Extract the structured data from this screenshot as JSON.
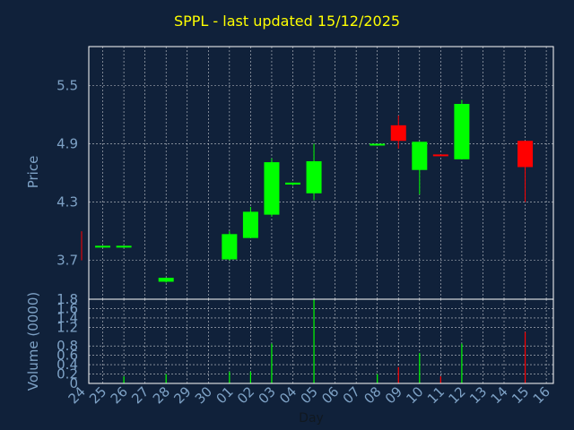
{
  "chart_data": {
    "type": "candlestick",
    "title": "SPPL - last updated 15/12/2025",
    "x_label": "Day",
    "x_ticks": [
      "24",
      "25",
      "26",
      "27",
      "28",
      "29",
      "30",
      "01",
      "02",
      "03",
      "04",
      "05",
      "06",
      "07",
      "08",
      "09",
      "10",
      "11",
      "12",
      "13",
      "14",
      "15",
      "16"
    ],
    "price_panel": {
      "ylabel": "Price",
      "ylim": [
        3.3,
        5.9
      ],
      "y_ticks": [
        "3.7",
        "4.3",
        "4.9",
        "5.5"
      ]
    },
    "volume_panel": {
      "ylabel": "Volume (0000)",
      "ylim": [
        0,
        1.8
      ],
      "y_ticks": [
        "0",
        "0.2",
        "0.4",
        "0.6",
        "0.8",
        "1.2",
        "1.4",
        "1.6",
        "1.8"
      ]
    },
    "candles": [
      {
        "day": "24",
        "open": 4.0,
        "high": 4.0,
        "low": 3.7,
        "close": 3.7,
        "volume": 0
      },
      {
        "day": "25",
        "open": 3.85,
        "high": 3.85,
        "low": 3.84,
        "close": 3.85,
        "volume": 0
      },
      {
        "day": "26",
        "open": 3.84,
        "high": 3.85,
        "low": 3.83,
        "close": 3.85,
        "volume": 0.15
      },
      {
        "day": "28",
        "open": 3.48,
        "high": 3.52,
        "low": 3.47,
        "close": 3.52,
        "volume": 0.2
      },
      {
        "day": "01",
        "open": 3.71,
        "high": 4.0,
        "low": 3.7,
        "close": 3.97,
        "volume": 0.25
      },
      {
        "day": "02",
        "open": 3.93,
        "high": 4.25,
        "low": 3.93,
        "close": 4.2,
        "volume": 0.25
      },
      {
        "day": "03",
        "open": 4.17,
        "high": 4.75,
        "low": 4.15,
        "close": 4.71,
        "volume": 0.85
      },
      {
        "day": "04",
        "open": 4.48,
        "high": 4.5,
        "low": 4.47,
        "close": 4.5,
        "volume": 0
      },
      {
        "day": "05",
        "open": 4.39,
        "high": 4.9,
        "low": 4.32,
        "close": 4.72,
        "volume": 1.8
      },
      {
        "day": "08",
        "open": 4.89,
        "high": 4.9,
        "low": 4.88,
        "close": 4.9,
        "volume": 0.2
      },
      {
        "day": "09",
        "open": 5.09,
        "high": 5.19,
        "low": 4.85,
        "close": 4.93,
        "volume": 0.35
      },
      {
        "day": "10",
        "open": 4.63,
        "high": 4.92,
        "low": 4.38,
        "close": 4.92,
        "volume": 0.65
      },
      {
        "day": "11",
        "open": 4.79,
        "high": 4.79,
        "low": 4.78,
        "close": 4.78,
        "volume": 0.15
      },
      {
        "day": "12",
        "open": 4.74,
        "high": 5.35,
        "low": 4.74,
        "close": 5.31,
        "volume": 0.85
      },
      {
        "day": "15",
        "open": 4.93,
        "high": 4.93,
        "low": 4.3,
        "close": 4.66,
        "volume": 1.1
      }
    ],
    "colors": {
      "up": "#00ff00",
      "down": "#ff0000",
      "background": "#10213a",
      "grid": "#ffffff",
      "text": "#7ea2c6",
      "title": "#ffff00"
    }
  }
}
